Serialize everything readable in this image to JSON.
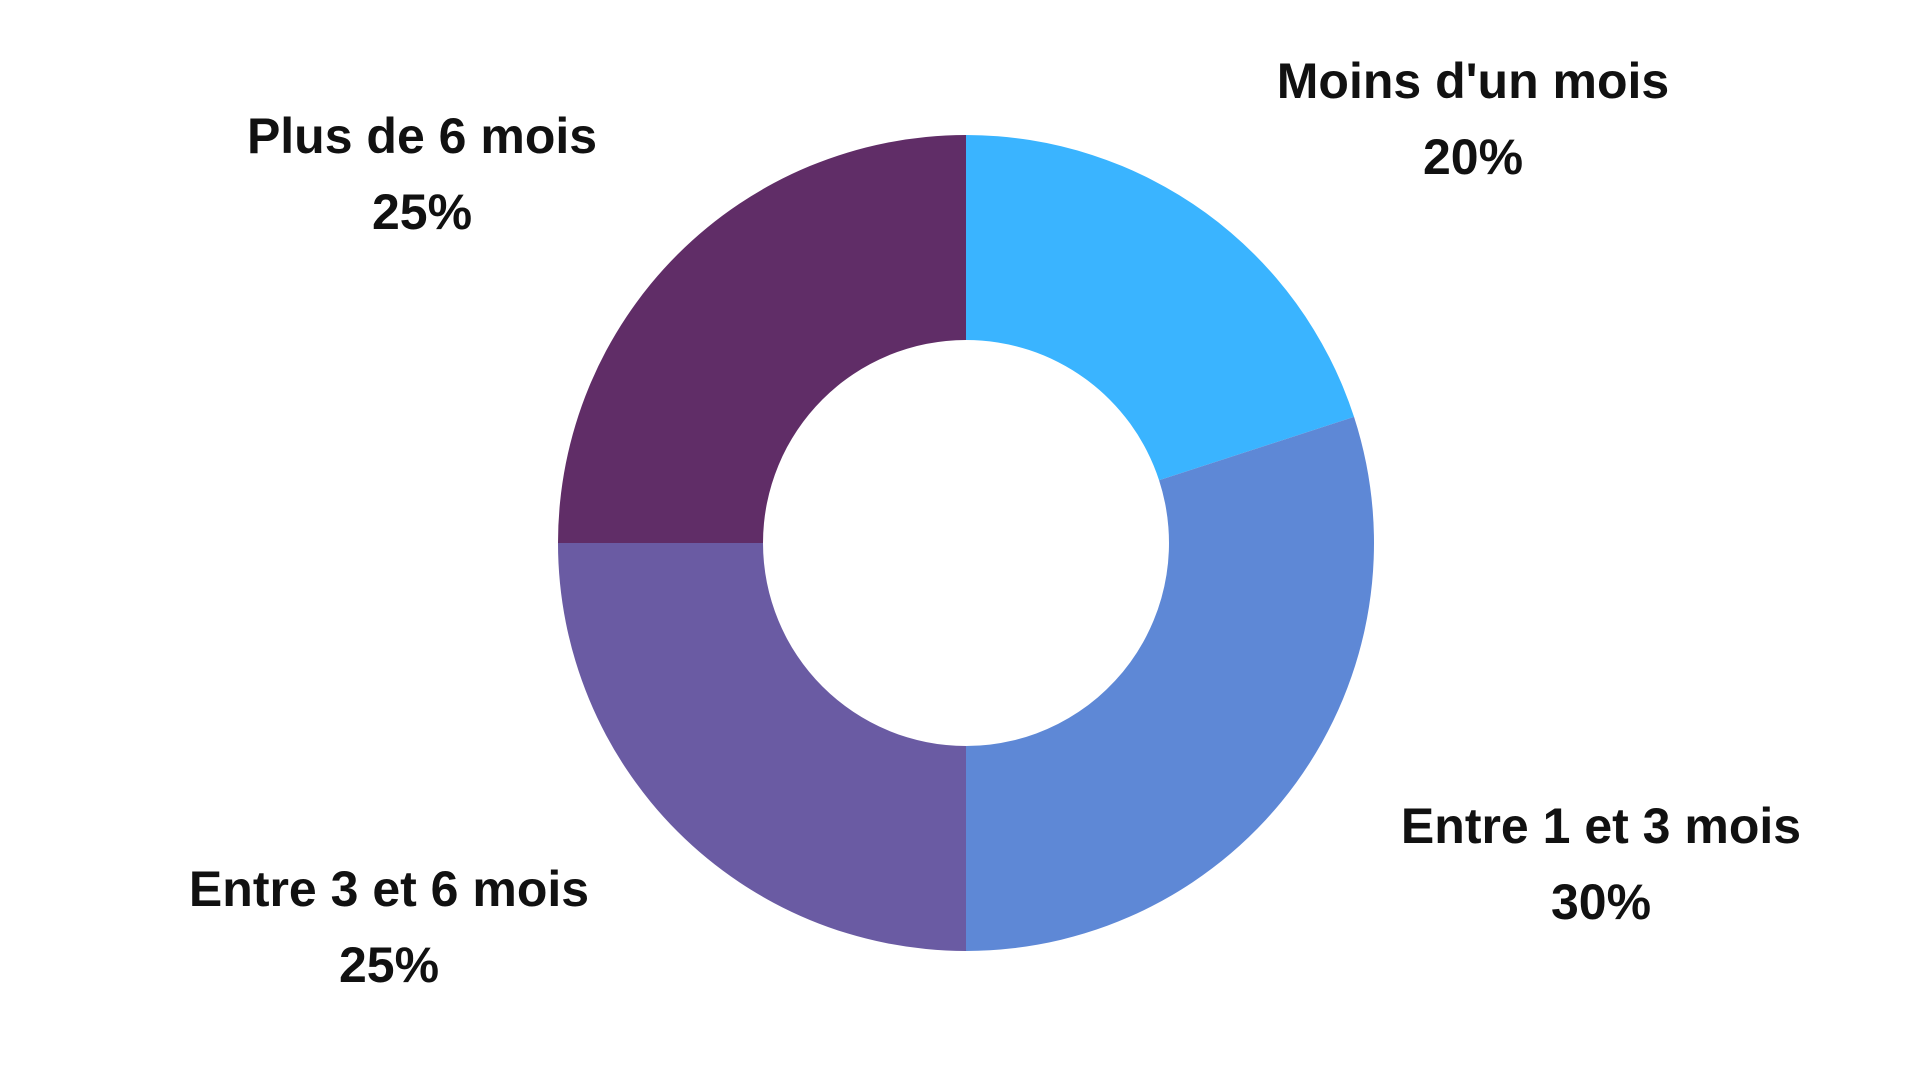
{
  "chart_data": {
    "type": "pie",
    "donut": true,
    "title": "",
    "legend": "none",
    "start_angle_deg": 0,
    "direction": "clockwise",
    "slices": [
      {
        "label": "Moins d'un mois",
        "value": 20,
        "display": "20%",
        "color": "#3AB4FF"
      },
      {
        "label": "Entre 1 et 3 mois",
        "value": 30,
        "display": "30%",
        "color": "#5E88D6"
      },
      {
        "label": "Entre 3 et 6 mois",
        "value": 25,
        "display": "25%",
        "color": "#6A5BA3"
      },
      {
        "label": "Plus de 6 mois",
        "value": 25,
        "display": "25%",
        "color": "#602D67"
      }
    ]
  }
}
